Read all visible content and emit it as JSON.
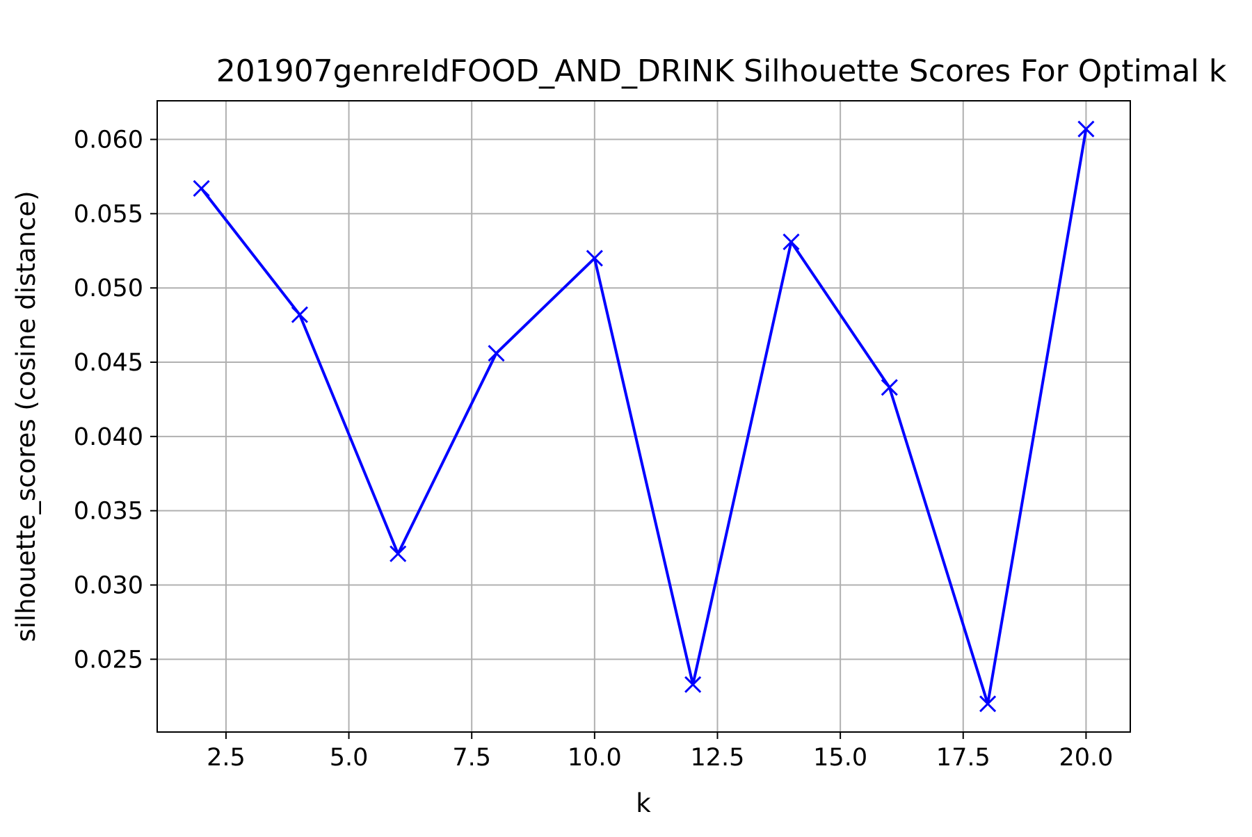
{
  "chart_data": {
    "type": "line",
    "title": "201907genreIdFOOD_AND_DRINK Silhouette Scores For Optimal k",
    "xlabel": "k",
    "ylabel": "silhouette_scores (cosine distance)",
    "x": [
      2,
      4,
      6,
      8,
      10,
      12,
      14,
      16,
      18,
      20
    ],
    "series": [
      {
        "values": [
          0.0567,
          0.0482,
          0.0321,
          0.0456,
          0.052,
          0.0233,
          0.0531,
          0.0433,
          0.022,
          0.0607
        ],
        "color": "#0000ff",
        "marker": "x"
      }
    ],
    "xlim": [
      1.1,
      20.9
    ],
    "ylim": [
      0.0201,
      0.0626
    ],
    "xticks": [
      2.5,
      5.0,
      7.5,
      10.0,
      12.5,
      15.0,
      17.5,
      20.0
    ],
    "xtick_labels": [
      "2.5",
      "5.0",
      "7.5",
      "10.0",
      "12.5",
      "15.0",
      "17.5",
      "20.0"
    ],
    "yticks": [
      0.025,
      0.03,
      0.035,
      0.04,
      0.045,
      0.05,
      0.055,
      0.06
    ],
    "ytick_labels": [
      "0.025",
      "0.030",
      "0.035",
      "0.040",
      "0.045",
      "0.050",
      "0.055",
      "0.060"
    ],
    "grid": true,
    "legend": false
  }
}
